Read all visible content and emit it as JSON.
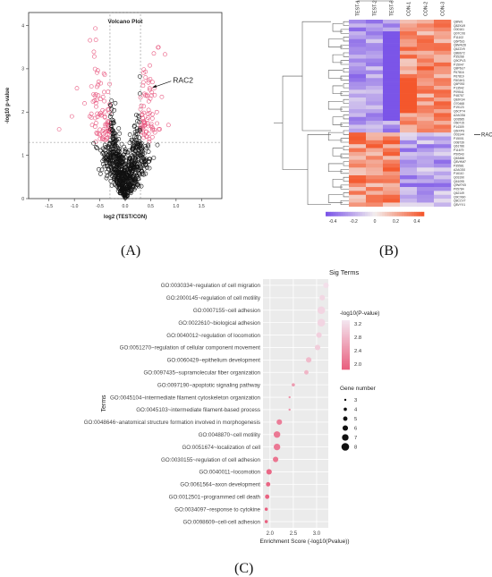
{
  "panel_labels": {
    "a": "(A)",
    "b": "(B)",
    "c": "(C)"
  },
  "volcano": {
    "title": "Volcano Plot",
    "xlabel": "log2 (TEST/CON)",
    "ylabel": "-log10 p-value",
    "x_ticks": [
      "-1.5",
      "-1.0",
      "-0.5",
      "0.0",
      "0.5",
      "1.0",
      "1.5"
    ],
    "y_ticks": [
      "0",
      "1",
      "2",
      "3",
      "4"
    ],
    "annotation": "RAC2",
    "colors": {
      "sig": "#e8577f",
      "nonsig": "#111111"
    }
  },
  "heatmap": {
    "columns": [
      "TEST-1",
      "TEST-2",
      "TEST-3",
      "CON-1",
      "CON-2",
      "CON-3"
    ],
    "rows": [
      "Q8IW1",
      "Q8ZKU9",
      "O00161",
      "Q07CX6",
      "P11102",
      "Q6P516",
      "Q8WKZ8",
      "Q6ZZV9",
      "Q8BS72",
      "P35268",
      "Q9CPV3",
      "P15047",
      "Q8P6U7",
      "P67816",
      "P67819",
      "F8G4K1",
      "Q6P092",
      "P13542",
      "P09541",
      "P48757",
      "Q8JKS4",
      "O70468",
      "P19123",
      "Q6CP74",
      "A2AGS6",
      "Q03585",
      "O60715",
      "P14309",
      "Q6IXPS",
      "O03144",
      "P15001",
      "O08739",
      "Q61786",
      "P11679",
      "P50543",
      "Q63466",
      "Q8VHM7",
      "P35581",
      "A2AGS0",
      "P16110",
      "Q03190",
      "Q61095",
      "Q9WTK5",
      "P05784",
      "Q62149",
      "Q9CXB0",
      "Q8CCV7",
      "Q8VYX1"
    ],
    "annotation": "RAC2",
    "legend_ticks": [
      "-0.4",
      "-0.2",
      "0",
      "0.2",
      "0.4"
    ],
    "colors": {
      "low": "#7b55e8",
      "mid": "#f3eeee",
      "high": "#f4572c"
    }
  },
  "chart_data": {
    "type": "scatter",
    "title": "Sig Terms",
    "xlabel": "Enrichment Score (-log10(Pvalue))",
    "ylabel": "Terms",
    "x_ticks": [
      "2.0",
      "2.5",
      "3.0"
    ],
    "xlim": [
      1.85,
      3.25
    ],
    "terms": [
      "GO:0030334~regulation of cell migration",
      "GO:2000145~regulation of cell motility",
      "GO:0007155~cell adhesion",
      "GO:0022610~biological adhesion",
      "GO:0040012~regulation of locomotion",
      "GO:0051270~regulation of cellular component movement",
      "GO:0060429~epithelium development",
      "GO:0097435~supramolecular fiber organization",
      "GO:0097190~apoptotic signaling pathway",
      "GO:0045104~intermediate filament cytoskeleton organization",
      "GO:0045103~intermediate filament-based process",
      "GO:0048646~anatomical structure formation involved in morphogenesis",
      "GO:0048870~cell motility",
      "GO:0051674~localization of cell",
      "GO:0030155~regulation of cell adhesion",
      "GO:0040011~locomotion",
      "GO:0061564~axon development",
      "GO:0012501~programmed cell death",
      "GO:0034097~response to cytokine",
      "GO:0098609~cell-cell adhesion"
    ],
    "enrichment": [
      3.2,
      3.12,
      3.1,
      3.1,
      3.05,
      3.02,
      2.83,
      2.78,
      2.5,
      2.42,
      2.42,
      2.2,
      2.15,
      2.15,
      2.12,
      1.98,
      1.96,
      1.94,
      1.92,
      1.92
    ],
    "gene_number": [
      6,
      6,
      8,
      8,
      6,
      6,
      6,
      5,
      4,
      3,
      3,
      6,
      7,
      7,
      6,
      6,
      5,
      5,
      4,
      4
    ],
    "legend_color": {
      "title": "-log10(P-value)",
      "ticks": [
        "3.2",
        "2.8",
        "2.4",
        "2.0"
      ],
      "colors": [
        "#f3e4ee",
        "#e9607f"
      ]
    },
    "legend_size": {
      "title": "Gene number",
      "ticks": [
        3,
        4,
        5,
        6,
        7,
        8
      ]
    }
  }
}
